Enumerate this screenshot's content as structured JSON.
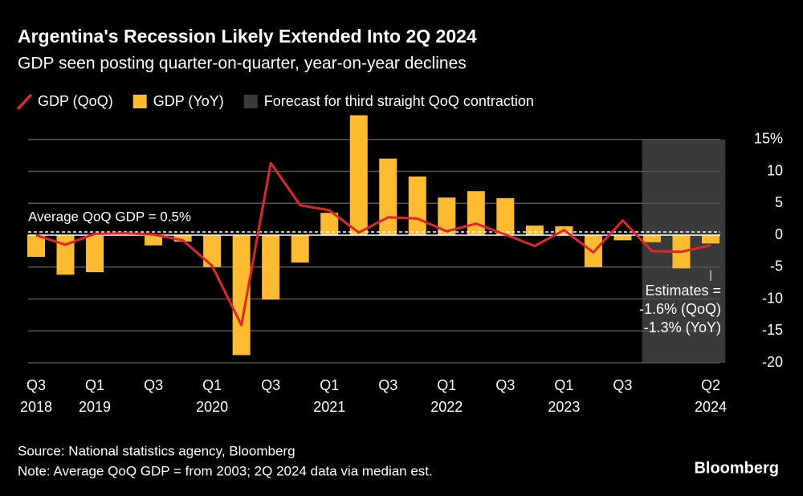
{
  "title": "Argentina's Recession Likely Extended Into 2Q 2024",
  "subtitle": "GDP seen posting quarter-on-quarter, year-on-year declines",
  "source": "Source: National statistics agency, Bloomberg",
  "note": "Note: Average QoQ GDP = from 2003; 2Q 2024 data via median est.",
  "logo": "Bloomberg",
  "chart_data": {
    "type": "bar",
    "categories": [
      "Q3",
      null,
      "Q1",
      null,
      "Q3",
      null,
      "Q1",
      null,
      "Q3",
      null,
      "Q1",
      null,
      "Q3",
      null,
      "Q1",
      null,
      "Q3",
      null,
      "Q1",
      null,
      "Q3",
      null,
      null,
      "Q2"
    ],
    "category_years": [
      "2018",
      null,
      "2019",
      null,
      null,
      null,
      "2020",
      null,
      null,
      null,
      "2021",
      null,
      null,
      null,
      "2022",
      null,
      null,
      null,
      "2023",
      null,
      null,
      null,
      null,
      "2024"
    ],
    "series": [
      {
        "name": "GDP (QoQ)",
        "type": "line",
        "color": "#e3242b",
        "values": [
          0.0,
          -1.5,
          0.2,
          0.3,
          0.1,
          -0.8,
          -4.8,
          -14.1,
          11.3,
          4.7,
          3.9,
          0.4,
          2.8,
          2.6,
          0.6,
          1.8,
          0.1,
          -1.7,
          0.8,
          -2.7,
          2.3,
          -2.5,
          -2.6,
          -1.6
        ]
      },
      {
        "name": "GDP (YoY)",
        "type": "bar",
        "color": "#fdbb30",
        "values": [
          -3.4,
          -6.2,
          -5.8,
          0.0,
          -1.6,
          -1.0,
          -5.0,
          -18.8,
          -10.1,
          -4.3,
          3.5,
          18.8,
          12.0,
          9.2,
          5.9,
          6.9,
          5.8,
          1.5,
          1.4,
          -5.0,
          -0.8,
          -1.1,
          -5.2,
          -1.3
        ]
      }
    ],
    "forecast": {
      "name": "Forecast for third straight QoQ contraction",
      "from": 21,
      "to": 23,
      "color": "#3a3a3a"
    },
    "average": {
      "label": "Average QoQ GDP = 0.5%",
      "value": 0.5
    },
    "annotation": [
      "Estimates =",
      "-1.6% (QoQ)",
      "-1.3% (YoY)"
    ],
    "ylim": [
      -20,
      19
    ],
    "yticks": [
      {
        "value": 15,
        "label": "15%"
      },
      10,
      5,
      0,
      -5,
      -10,
      -15,
      -20
    ],
    "grid": true
  }
}
